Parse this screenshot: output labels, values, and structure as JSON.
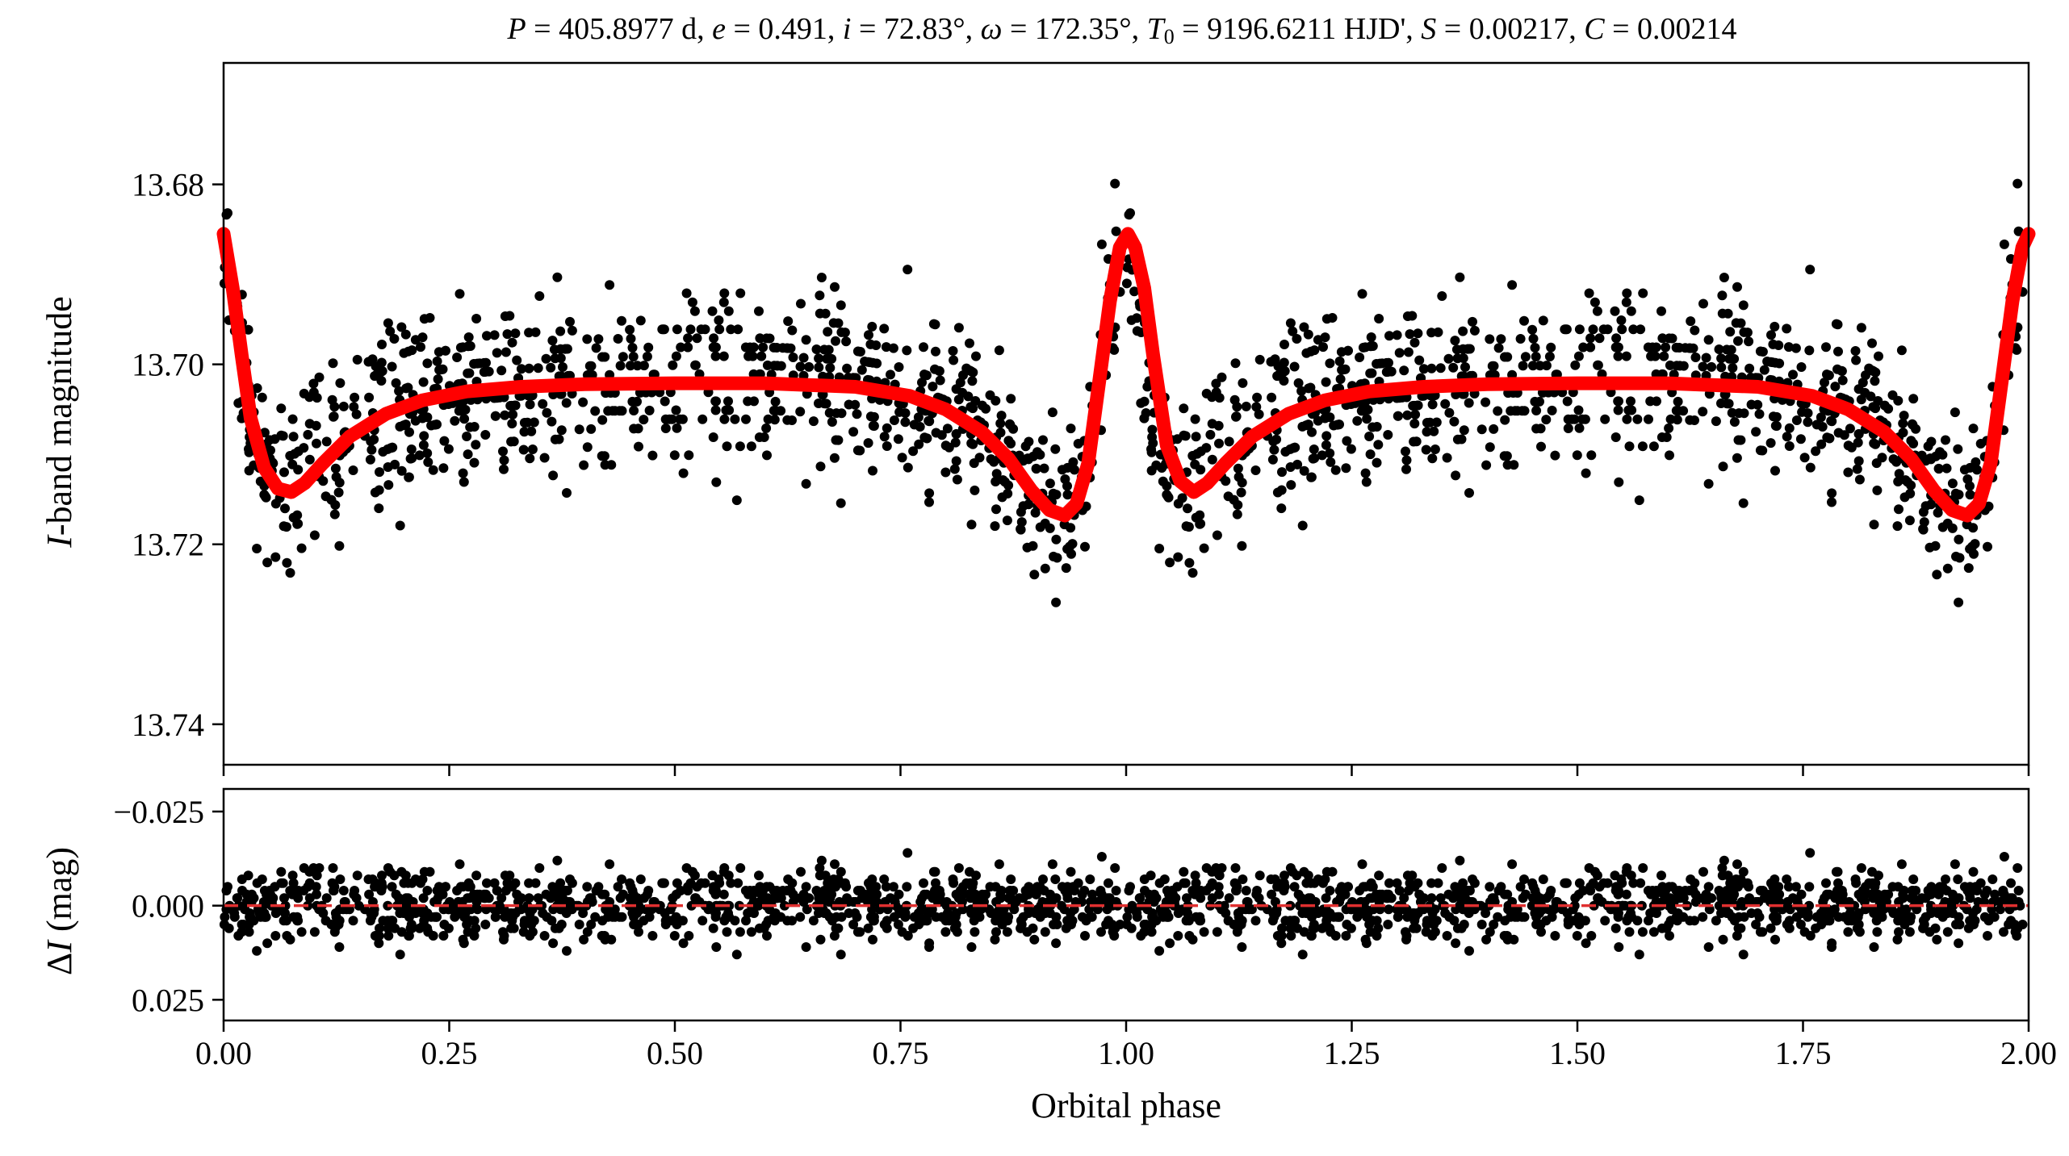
{
  "title_parts": [
    {
      "t": "P",
      "i": true
    },
    {
      "t": " = 405.8977 d, "
    },
    {
      "t": "e",
      "i": true
    },
    {
      "t": " = 0.491, "
    },
    {
      "t": "i",
      "i": true
    },
    {
      "t": " = 72.83°, "
    },
    {
      "t": "ω",
      "i": true
    },
    {
      "t": " = 172.35°, "
    },
    {
      "t": "T",
      "i": true
    },
    {
      "t": "0",
      "sub": true
    },
    {
      "t": " = 9196.6211 HJD', "
    },
    {
      "t": "S",
      "i": true
    },
    {
      "t": " = 0.00217, "
    },
    {
      "t": "C",
      "i": true
    },
    {
      "t": " = 0.00214"
    }
  ],
  "chart_data": [
    {
      "type": "scatter",
      "panel": "top",
      "ylabel_italic": "I",
      "ylabel_rest": "-band magnitude",
      "xlim": [
        0.0,
        2.0
      ],
      "ylim": [
        13.6665,
        13.7445
      ],
      "y_inverted": true,
      "yticks": [
        "13.68",
        "13.70",
        "13.72",
        "13.74"
      ],
      "ytick_values": [
        13.68,
        13.7,
        13.72,
        13.74
      ],
      "series": [
        {
          "kind": "observations",
          "color": "#000000",
          "marker": "filled-circle",
          "approx_points_per_cycle": 900,
          "scatter_sigma_mag": 0.0048
        },
        {
          "kind": "model",
          "color": "#ff0000",
          "curve": [
            [
              0.0,
              13.6855
            ],
            [
              0.01,
              13.6915
            ],
            [
              0.02,
              13.699
            ],
            [
              0.03,
              13.706
            ],
            [
              0.045,
              13.7115
            ],
            [
              0.06,
              13.7138
            ],
            [
              0.075,
              13.7142
            ],
            [
              0.09,
              13.7132
            ],
            [
              0.11,
              13.711
            ],
            [
              0.14,
              13.708
            ],
            [
              0.18,
              13.7055
            ],
            [
              0.22,
              13.704
            ],
            [
              0.27,
              13.703
            ],
            [
              0.33,
              13.7025
            ],
            [
              0.4,
              13.7022
            ],
            [
              0.5,
              13.7021
            ],
            [
              0.6,
              13.7021
            ],
            [
              0.7,
              13.7025
            ],
            [
              0.76,
              13.7035
            ],
            [
              0.8,
              13.705
            ],
            [
              0.84,
              13.7075
            ],
            [
              0.87,
              13.7105
            ],
            [
              0.895,
              13.714
            ],
            [
              0.915,
              13.7162
            ],
            [
              0.932,
              13.7168
            ],
            [
              0.945,
              13.7155
            ],
            [
              0.958,
              13.711
            ],
            [
              0.97,
              13.702
            ],
            [
              0.982,
              13.693
            ],
            [
              0.993,
              13.687
            ],
            [
              1.002,
              13.6855
            ],
            [
              1.01,
              13.687
            ],
            [
              1.02,
              13.6915
            ],
            [
              1.03,
              13.699
            ],
            [
              1.045,
              13.709
            ],
            [
              1.06,
              13.713
            ],
            [
              1.075,
              13.7142
            ],
            [
              1.09,
              13.7132
            ],
            [
              1.11,
              13.711
            ],
            [
              1.14,
              13.708
            ],
            [
              1.18,
              13.7055
            ],
            [
              1.22,
              13.704
            ],
            [
              1.27,
              13.703
            ],
            [
              1.33,
              13.7025
            ],
            [
              1.4,
              13.7022
            ],
            [
              1.5,
              13.7021
            ],
            [
              1.6,
              13.7021
            ],
            [
              1.7,
              13.7025
            ],
            [
              1.76,
              13.7035
            ],
            [
              1.8,
              13.705
            ],
            [
              1.84,
              13.7075
            ],
            [
              1.87,
              13.7105
            ],
            [
              1.895,
              13.714
            ],
            [
              1.915,
              13.7162
            ],
            [
              1.932,
              13.7168
            ],
            [
              1.945,
              13.7155
            ],
            [
              1.958,
              13.711
            ],
            [
              1.97,
              13.702
            ],
            [
              1.982,
              13.693
            ],
            [
              1.993,
              13.687
            ],
            [
              2.0,
              13.6855
            ]
          ]
        }
      ]
    },
    {
      "type": "scatter",
      "panel": "bottom",
      "ylabel_italic": "I",
      "ylabel_prefix": "Δ",
      "ylabel_rest": " (mag)",
      "xlabel": "Orbital phase",
      "xlim": [
        0.0,
        2.0
      ],
      "ylim": [
        -0.031,
        0.0305
      ],
      "y_inverted": true,
      "xticks": [
        "0.00",
        "0.25",
        "0.50",
        "0.75",
        "1.00",
        "1.25",
        "1.50",
        "1.75",
        "2.00"
      ],
      "xtick_values": [
        0.0,
        0.25,
        0.5,
        0.75,
        1.0,
        1.25,
        1.5,
        1.75,
        2.0
      ],
      "yticks": [
        "−0.025",
        "0.000",
        "0.025"
      ],
      "ytick_values": [
        -0.025,
        0.0,
        0.025
      ],
      "series": [
        {
          "kind": "residuals",
          "color": "#000000",
          "marker": "filled-circle"
        },
        {
          "kind": "zero-line",
          "color": "#e03030",
          "style": "dashed",
          "y": 0.0
        }
      ]
    }
  ]
}
